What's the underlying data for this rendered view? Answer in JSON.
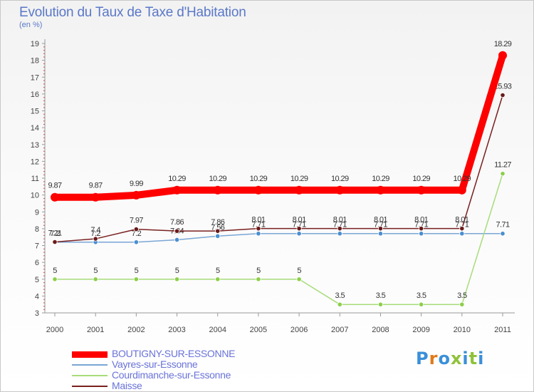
{
  "title": "Evolution du Taux de Taxe d'Habitation",
  "subtitle": "(en %)",
  "logo": {
    "text": "Proxiti",
    "colors": [
      "#3a8fd8",
      "#e07a1a",
      "#3a8fd8",
      "#8fc23a",
      "#3a8fd8",
      "#8fc23a",
      "#3a8fd8"
    ]
  },
  "chart_data": {
    "type": "line",
    "title": "Evolution du Taux de Taxe d'Habitation",
    "ylabel": "(en %)",
    "xlabel": "",
    "x": [
      "2000",
      "2001",
      "2002",
      "2003",
      "2004",
      "2005",
      "2006",
      "2007",
      "2008",
      "2009",
      "2010",
      "2011"
    ],
    "ylim": [
      3,
      19
    ],
    "yticks": [
      3,
      4,
      5,
      6,
      7,
      8,
      9,
      10,
      11,
      12,
      13,
      14,
      15,
      16,
      17,
      18,
      19
    ],
    "grid": false,
    "legend_position": "bottom-left",
    "series": [
      {
        "name": "BOUTIGNY-SUR-ESSONNE",
        "color": "#ff0000",
        "marker_color": "#ff0000",
        "emphasis": true,
        "values": [
          9.87,
          9.87,
          9.99,
          10.29,
          10.29,
          10.29,
          10.29,
          10.29,
          10.29,
          10.29,
          10.29,
          18.29
        ],
        "labels": [
          "9.87",
          "9.87",
          "9.99",
          "10.29",
          "10.29",
          "10.29",
          "10.29",
          "10.29",
          "10.29",
          "10.29",
          "10.29",
          "18.29"
        ]
      },
      {
        "name": "Vayres-sur-Essonne",
        "color": "#7aa6d4",
        "marker_color": "#4a8fd0",
        "emphasis": false,
        "values": [
          7.2,
          7.2,
          7.2,
          7.34,
          7.56,
          7.71,
          7.71,
          7.71,
          7.71,
          7.71,
          7.71,
          7.71
        ],
        "labels": [
          "7.2",
          "7.2",
          "7.2",
          "7.34",
          "7.56",
          "7.71",
          "7.71",
          "7.71",
          "7.71",
          "7.71",
          "7.71",
          "7.71"
        ]
      },
      {
        "name": "Courdimanche-sur-Essonne",
        "color": "#a8dc7a",
        "marker_color": "#8ccf4a",
        "emphasis": false,
        "values": [
          5,
          5,
          5,
          5,
          5,
          5,
          5,
          3.5,
          3.5,
          3.5,
          3.5,
          11.27
        ],
        "labels": [
          "5",
          "5",
          "5",
          "5",
          "5",
          "5",
          "5",
          "3.5",
          "3.5",
          "3.5",
          "3.5",
          "11.27"
        ]
      },
      {
        "name": "Maisse",
        "color": "#7a2020",
        "marker_color": "#6a1a1a",
        "emphasis": false,
        "values": [
          7.21,
          7.4,
          7.97,
          7.86,
          7.86,
          8.01,
          8.01,
          8.01,
          8.01,
          8.01,
          8.01,
          15.93
        ],
        "labels": [
          "7.21",
          "7.4",
          "7.97",
          "7.86",
          "7.86",
          "8.01",
          "8.01",
          "8.01",
          "8.01",
          "8.01",
          "8.01",
          "15.93"
        ]
      }
    ]
  }
}
